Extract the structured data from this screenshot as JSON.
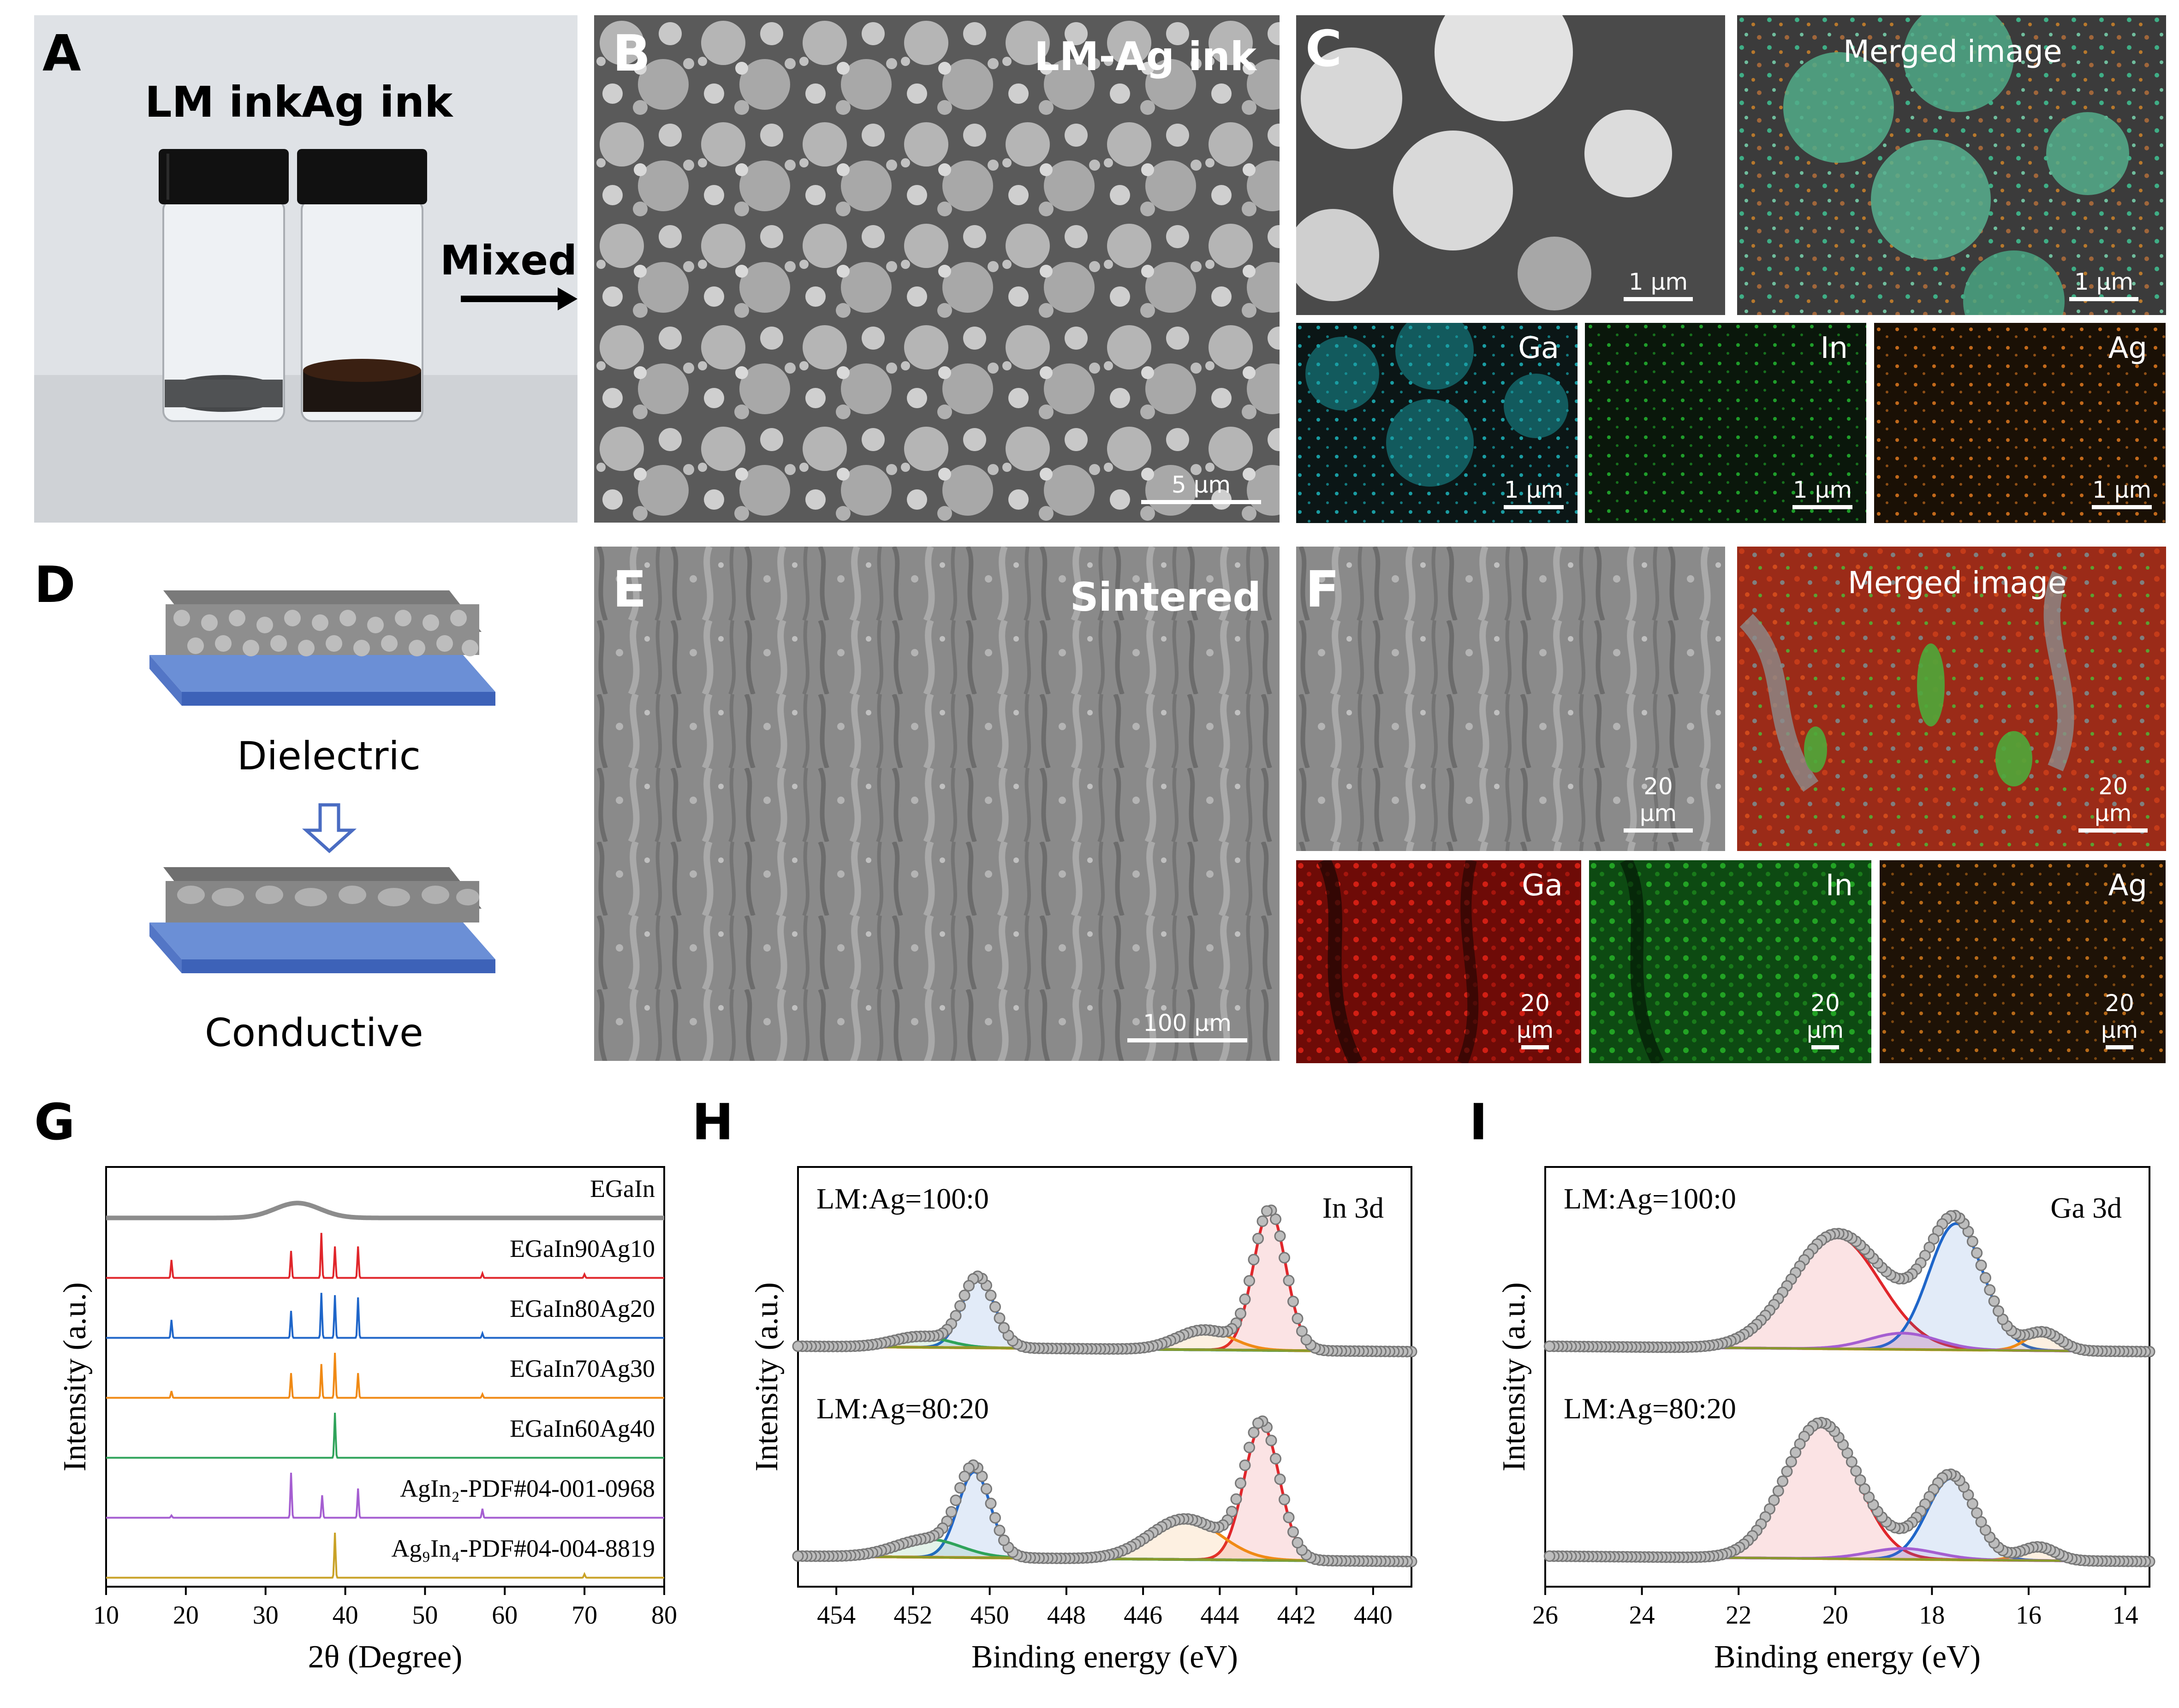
{
  "panels": {
    "A": {
      "label": "A",
      "left_text": "LM ink",
      "right_text": "Ag ink",
      "arrow_text": "Mixed"
    },
    "B": {
      "label": "B",
      "title": "LM-Ag ink",
      "scale": "5 μm"
    },
    "C": {
      "label": "C",
      "merged_title": "Merged image",
      "scale_main": "1 μm",
      "scale_merged": "1 μm",
      "maps": [
        {
          "element": "Ga",
          "scale": "1 μm",
          "color": "#1a9da3"
        },
        {
          "element": "In",
          "scale": "1 μm",
          "color": "#1f9e2a"
        },
        {
          "element": "Ag",
          "scale": "1 μm",
          "color": "#c2691b"
        }
      ]
    },
    "D": {
      "label": "D",
      "top_text": "Dielectric",
      "bottom_text": "Conductive"
    },
    "E": {
      "label": "E",
      "title": "Sintered",
      "scale": "100 μm"
    },
    "F": {
      "label": "F",
      "merged_title": "Merged image",
      "scale_main": "20 μm",
      "scale_merged": "20 μm",
      "maps": [
        {
          "element": "Ga",
          "scale": "20 μm",
          "color": "#c41a12"
        },
        {
          "element": "In",
          "scale": "20 μm",
          "color": "#1c8a1c"
        },
        {
          "element": "Ag",
          "scale": "20 μm",
          "color": "#b86a18"
        }
      ]
    },
    "G": {
      "label": "G"
    },
    "H": {
      "label": "H"
    },
    "I": {
      "label": "I"
    }
  },
  "chart_data": [
    {
      "id": "G",
      "type": "line",
      "xlabel": "2θ (Degree)",
      "ylabel": "Intensity (a.u.)",
      "xlim": [
        10,
        80
      ],
      "xticks": [
        10,
        20,
        30,
        40,
        50,
        60,
        70,
        80
      ],
      "series": [
        {
          "name": "EGaIn",
          "color": "#8c8c8c",
          "baseline": true,
          "hump": {
            "center": 34,
            "height": 0.55
          }
        },
        {
          "name": "EGaIn90Ag10",
          "color": "#e0262b",
          "peaks": [
            [
              18.2,
              0.4
            ],
            [
              33.2,
              0.6
            ],
            [
              37.0,
              1.0
            ],
            [
              38.7,
              0.7
            ],
            [
              41.6,
              0.7
            ],
            [
              57.2,
              0.1
            ],
            [
              70.0,
              0.08
            ]
          ]
        },
        {
          "name": "EGaIn80Ag20",
          "color": "#1f66c9",
          "peaks": [
            [
              18.2,
              0.4
            ],
            [
              33.2,
              0.6
            ],
            [
              37.0,
              1.0
            ],
            [
              38.7,
              0.95
            ],
            [
              41.6,
              0.9
            ],
            [
              57.2,
              0.1
            ]
          ]
        },
        {
          "name": "EGaIn70Ag30",
          "color": "#f08a15",
          "peaks": [
            [
              18.2,
              0.15
            ],
            [
              33.2,
              0.55
            ],
            [
              37.0,
              0.75
            ],
            [
              38.7,
              1.0
            ],
            [
              41.6,
              0.55
            ],
            [
              57.2,
              0.08
            ]
          ]
        },
        {
          "name": "EGaIn60Ag40",
          "color": "#2fa35a",
          "peaks": [
            [
              38.7,
              1.0
            ]
          ]
        },
        {
          "name": "AgIn₂-PDF#04-001-0968",
          "color": "#a55ed1",
          "peaks": [
            [
              18.2,
              0.05
            ],
            [
              33.2,
              1.0
            ],
            [
              37.1,
              0.5
            ],
            [
              41.6,
              0.65
            ],
            [
              57.2,
              0.2
            ]
          ]
        },
        {
          "name": "Ag₉In₄-PDF#04-004-8819",
          "color": "#c9a227",
          "peaks": [
            [
              38.7,
              1.0
            ],
            [
              70.0,
              0.08
            ]
          ]
        }
      ]
    },
    {
      "id": "H",
      "type": "line",
      "title": "In 3d",
      "xlabel": "Binding energy (eV)",
      "ylabel": "Intensity (a.u.)",
      "xlim": [
        455,
        439
      ],
      "xticks": [
        454,
        452,
        450,
        448,
        446,
        444,
        442,
        440
      ],
      "series": [
        {
          "name": "LM:Ag=100:0",
          "components": [
            {
              "center": 450.3,
              "height": 0.78,
              "width": 0.6,
              "color": "#1f66c9"
            },
            {
              "center": 442.7,
              "height": 1.55,
              "width": 0.6,
              "color": "#e0262b"
            },
            {
              "center": 451.8,
              "height": 0.12,
              "width": 1.0,
              "color": "#2fa35a"
            },
            {
              "center": 444.4,
              "height": 0.22,
              "width": 1.0,
              "color": "#f08a15"
            }
          ]
        },
        {
          "name": "LM:Ag=80:20",
          "components": [
            {
              "center": 450.4,
              "height": 0.95,
              "width": 0.6,
              "color": "#1f66c9"
            },
            {
              "center": 442.9,
              "height": 1.5,
              "width": 0.65,
              "color": "#e0262b"
            },
            {
              "center": 451.6,
              "height": 0.2,
              "width": 1.2,
              "color": "#2fa35a"
            },
            {
              "center": 444.9,
              "height": 0.45,
              "width": 1.3,
              "color": "#f08a15"
            }
          ]
        }
      ]
    },
    {
      "id": "I",
      "type": "line",
      "title": "Ga 3d",
      "xlabel": "Binding energy (eV)",
      "ylabel": "Intensity (a.u.)",
      "xlim": [
        26,
        13.5
      ],
      "xticks": [
        26,
        24,
        22,
        20,
        18,
        16,
        14
      ],
      "series": [
        {
          "name": "LM:Ag=100:0",
          "components": [
            {
              "center": 20.0,
              "height": 1.25,
              "width": 1.3,
              "color": "#e0262b"
            },
            {
              "center": 17.5,
              "height": 1.4,
              "width": 0.8,
              "color": "#1f66c9"
            },
            {
              "center": 15.7,
              "height": 0.2,
              "width": 0.5,
              "color": "#f08a15"
            },
            {
              "center": 18.6,
              "height": 0.18,
              "width": 1.0,
              "color": "#a55ed1"
            }
          ]
        },
        {
          "name": "LM:Ag=80:20",
          "components": [
            {
              "center": 20.3,
              "height": 1.5,
              "width": 1.05,
              "color": "#e0262b"
            },
            {
              "center": 17.6,
              "height": 0.9,
              "width": 0.7,
              "color": "#1f66c9"
            },
            {
              "center": 15.8,
              "height": 0.15,
              "width": 0.5,
              "color": "#f08a15"
            },
            {
              "center": 18.6,
              "height": 0.12,
              "width": 1.0,
              "color": "#a55ed1"
            }
          ]
        }
      ]
    }
  ]
}
